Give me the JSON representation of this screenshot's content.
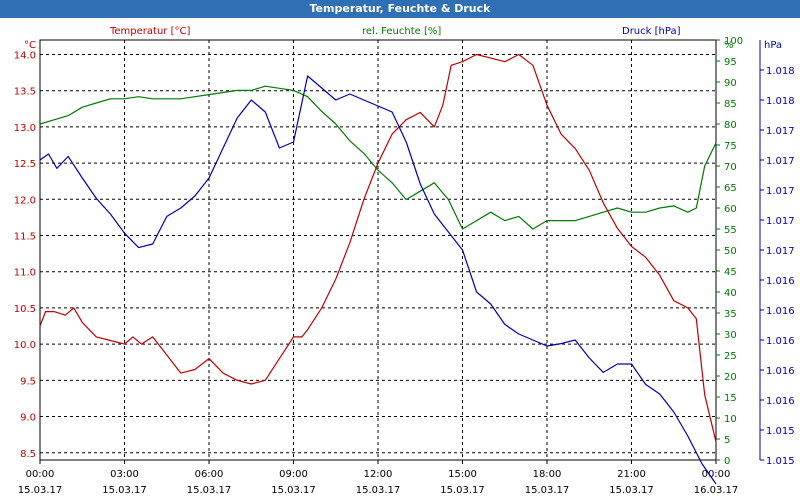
{
  "chart_data": {
    "type": "line",
    "title": "Temperatur, Feuchte & Druck",
    "axes": {
      "left": {
        "unit": "°C",
        "series_label": "Temperatur [°C]",
        "range": [
          8.4,
          14.2
        ],
        "ticks": [
          "14.0",
          "13.5",
          "13.0",
          "12.5",
          "12.0",
          "11.5",
          "11.0",
          "10.5",
          "10.0",
          "9.5",
          "9.0",
          "8.5"
        ],
        "tick_values": [
          14.0,
          13.5,
          13.0,
          12.5,
          12.0,
          11.5,
          11.0,
          10.5,
          10.0,
          9.5,
          9.0,
          8.5
        ]
      },
      "right1": {
        "unit": "%",
        "series_label": "rel. Feuchte [%]",
        "range": [
          0,
          100
        ],
        "ticks": [
          "100",
          "95",
          "90",
          "85",
          "80",
          "75",
          "70",
          "65",
          "60",
          "55",
          "50",
          "45",
          "40",
          "35",
          "30",
          "25",
          "20",
          "15",
          "10",
          "5",
          "0"
        ],
        "tick_values": [
          100,
          95,
          90,
          85,
          80,
          75,
          70,
          65,
          60,
          55,
          50,
          45,
          40,
          35,
          30,
          25,
          20,
          15,
          10,
          5,
          0
        ]
      },
      "right2": {
        "unit": "hPa",
        "series_label": "Druck [hPa]",
        "range": [
          1.01475,
          1.01825
        ],
        "ticks": [
          "1.018",
          "1.018",
          "1.017",
          "1.017",
          "1.017",
          "1.017",
          "1.017",
          "1.016",
          "1.016",
          "1.016",
          "1.016",
          "1.016",
          "1.015",
          "1.015",
          "1.015"
        ],
        "tick_values": [
          1.018,
          1.01775,
          1.0175,
          1.01725,
          1.017,
          1.01675,
          1.0165,
          1.01625,
          1.016,
          1.01575,
          1.0155,
          1.01525,
          1.015,
          1.01475,
          1.0145
        ]
      }
    },
    "x": {
      "range_hours": [
        0,
        24
      ],
      "ticks": [
        {
          "time": "00:00",
          "date": "15.03.17",
          "hour": 0
        },
        {
          "time": "03:00",
          "date": "15.03.17",
          "hour": 3
        },
        {
          "time": "06:00",
          "date": "15.03.17",
          "hour": 6
        },
        {
          "time": "09:00",
          "date": "15.03.17",
          "hour": 9
        },
        {
          "time": "12:00",
          "date": "15.03.17",
          "hour": 12
        },
        {
          "time": "15:00",
          "date": "15.03.17",
          "hour": 15
        },
        {
          "time": "18:00",
          "date": "15.03.17",
          "hour": 18
        },
        {
          "time": "21:00",
          "date": "15.03.17",
          "hour": 21
        },
        {
          "time": "00:00",
          "date": "16.03.17",
          "hour": 24
        }
      ]
    },
    "grid": true,
    "series": [
      {
        "name": "Temperatur [°C]",
        "axis": "left",
        "color": "#c00000",
        "points": [
          [
            0,
            10.25
          ],
          [
            0.2,
            10.45
          ],
          [
            0.5,
            10.45
          ],
          [
            0.9,
            10.4
          ],
          [
            1.2,
            10.5
          ],
          [
            1.5,
            10.3
          ],
          [
            2,
            10.1
          ],
          [
            2.5,
            10.05
          ],
          [
            3,
            10.0
          ],
          [
            3.3,
            10.1
          ],
          [
            3.6,
            10.0
          ],
          [
            4,
            10.1
          ],
          [
            4.5,
            9.85
          ],
          [
            5,
            9.6
          ],
          [
            5.5,
            9.65
          ],
          [
            6,
            9.8
          ],
          [
            6.5,
            9.6
          ],
          [
            7,
            9.5
          ],
          [
            7.5,
            9.45
          ],
          [
            8,
            9.5
          ],
          [
            8.5,
            9.8
          ],
          [
            9,
            10.1
          ],
          [
            9.3,
            10.1
          ],
          [
            9.5,
            10.2
          ],
          [
            10,
            10.5
          ],
          [
            10.5,
            10.9
          ],
          [
            11,
            11.4
          ],
          [
            11.5,
            12.0
          ],
          [
            12,
            12.5
          ],
          [
            12.5,
            12.9
          ],
          [
            13,
            13.1
          ],
          [
            13.5,
            13.2
          ],
          [
            14,
            13.0
          ],
          [
            14.3,
            13.3
          ],
          [
            14.6,
            13.85
          ],
          [
            15,
            13.9
          ],
          [
            15.5,
            14.0
          ],
          [
            16,
            13.95
          ],
          [
            16.5,
            13.9
          ],
          [
            17,
            14.0
          ],
          [
            17.5,
            13.85
          ],
          [
            18,
            13.3
          ],
          [
            18.5,
            12.9
          ],
          [
            19,
            12.7
          ],
          [
            19.5,
            12.4
          ],
          [
            20,
            11.95
          ],
          [
            20.5,
            11.6
          ],
          [
            21,
            11.35
          ],
          [
            21.5,
            11.2
          ],
          [
            22,
            10.95
          ],
          [
            22.5,
            10.6
          ],
          [
            23,
            10.5
          ],
          [
            23.3,
            10.35
          ],
          [
            23.6,
            9.3
          ],
          [
            24,
            8.65
          ]
        ]
      },
      {
        "name": "rel. Feuchte [%]",
        "axis": "right1",
        "color": "#007a00",
        "points": [
          [
            0,
            80
          ],
          [
            0.5,
            81
          ],
          [
            1,
            82
          ],
          [
            1.5,
            84
          ],
          [
            2,
            85
          ],
          [
            2.5,
            86
          ],
          [
            3,
            86
          ],
          [
            3.5,
            86.5
          ],
          [
            4,
            86
          ],
          [
            4.5,
            86
          ],
          [
            5,
            86
          ],
          [
            5.5,
            86.5
          ],
          [
            6,
            87
          ],
          [
            6.5,
            87.5
          ],
          [
            7,
            88
          ],
          [
            7.5,
            88
          ],
          [
            8,
            89
          ],
          [
            8.5,
            88.5
          ],
          [
            9,
            88
          ],
          [
            9.5,
            86.5
          ],
          [
            10,
            83
          ],
          [
            10.5,
            80
          ],
          [
            11,
            76
          ],
          [
            11.5,
            73
          ],
          [
            12,
            69
          ],
          [
            12.5,
            66
          ],
          [
            13,
            62
          ],
          [
            13.5,
            64
          ],
          [
            14,
            66
          ],
          [
            14.5,
            62
          ],
          [
            15,
            55
          ],
          [
            15.5,
            57
          ],
          [
            16,
            59
          ],
          [
            16.5,
            57
          ],
          [
            17,
            58
          ],
          [
            17.5,
            55
          ],
          [
            18,
            57
          ],
          [
            18.5,
            57
          ],
          [
            19,
            57
          ],
          [
            19.5,
            58
          ],
          [
            20,
            59
          ],
          [
            20.5,
            60
          ],
          [
            21,
            59
          ],
          [
            21.5,
            59
          ],
          [
            22,
            60
          ],
          [
            22.5,
            60.5
          ],
          [
            23,
            59
          ],
          [
            23.3,
            60
          ],
          [
            23.6,
            70
          ],
          [
            24,
            75.5
          ]
        ]
      },
      {
        "name": "Druck [hPa]",
        "axis": "right2",
        "color": "#0000b4",
        "points": [
          [
            0,
            1.01725
          ],
          [
            0.3,
            1.0173
          ],
          [
            0.6,
            1.01718
          ],
          [
            1,
            1.01728
          ],
          [
            1.5,
            1.0171
          ],
          [
            2,
            1.01693
          ],
          [
            2.5,
            1.0168
          ],
          [
            3,
            1.01664
          ],
          [
            3.5,
            1.01652
          ],
          [
            4,
            1.01655
          ],
          [
            4.5,
            1.01678
          ],
          [
            5,
            1.01685
          ],
          [
            5.5,
            1.01695
          ],
          [
            6,
            1.0171
          ],
          [
            6.5,
            1.01735
          ],
          [
            7,
            1.0176
          ],
          [
            7.5,
            1.01775
          ],
          [
            8,
            1.01765
          ],
          [
            8.5,
            1.01735
          ],
          [
            9,
            1.0174
          ],
          [
            9.5,
            1.01795
          ],
          [
            10,
            1.01785
          ],
          [
            10.5,
            1.01775
          ],
          [
            11,
            1.0178
          ],
          [
            11.5,
            1.01775
          ],
          [
            12,
            1.0177
          ],
          [
            12.5,
            1.01765
          ],
          [
            13,
            1.0174
          ],
          [
            13.5,
            1.01705
          ],
          [
            14,
            1.0168
          ],
          [
            14.5,
            1.01665
          ],
          [
            15,
            1.0165
          ],
          [
            15.5,
            1.01615
          ],
          [
            16,
            1.01605
          ],
          [
            16.5,
            1.01588
          ],
          [
            17,
            1.0158
          ],
          [
            17.5,
            1.01575
          ],
          [
            18,
            1.0157
          ],
          [
            18.5,
            1.01572
          ],
          [
            19,
            1.01575
          ],
          [
            19.5,
            1.0156
          ],
          [
            20,
            1.01548
          ],
          [
            20.5,
            1.01555
          ],
          [
            21,
            1.01555
          ],
          [
            21.5,
            1.01538
          ],
          [
            22,
            1.0153
          ],
          [
            22.5,
            1.01515
          ],
          [
            23,
            1.01495
          ],
          [
            23.5,
            1.01472
          ],
          [
            24,
            1.01455
          ]
        ]
      }
    ]
  }
}
